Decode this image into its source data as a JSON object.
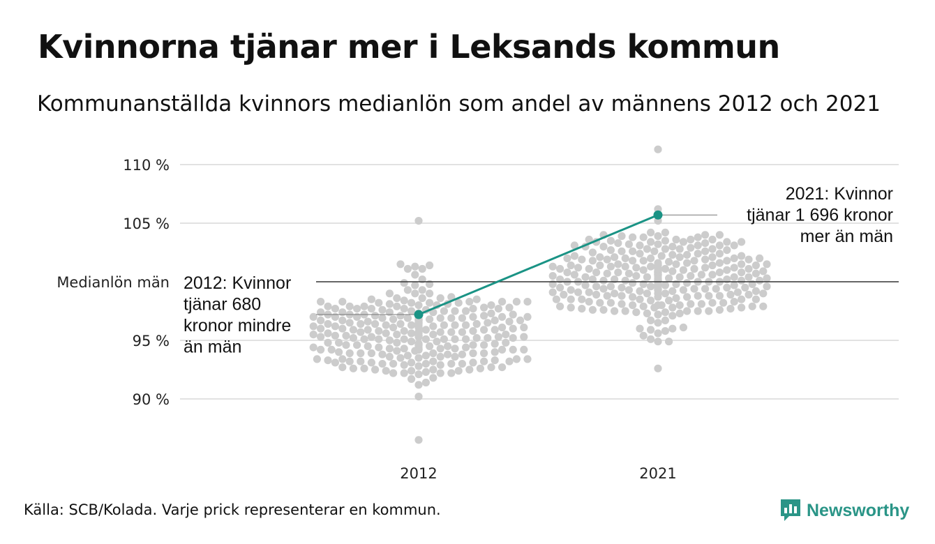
{
  "title": "Kvinnorna tjänar mer i Leksands kommun",
  "subtitle": "Kommunanställda kvinnors medianlön som andel av männens 2012 och 2021",
  "footer": "Källa: SCB/Kolada. Varje prick representerar en kommun.",
  "logo": {
    "text": "Newsworthy",
    "icon": "bar-chart-speech-icon"
  },
  "colors": {
    "accent": "#1a9385",
    "dots": "#cccccc",
    "grid": "#e2e2e2",
    "reference": "#333333"
  },
  "chart_data": {
    "type": "scatter",
    "subtype": "beeswarm",
    "categories": [
      "2012",
      "2021"
    ],
    "y_tick_labels": [
      "110 %",
      "105 %",
      "95 %",
      "90 %"
    ],
    "y_ticks": [
      110,
      105,
      95,
      90
    ],
    "ylim": [
      86,
      112
    ],
    "reference_line": {
      "label": "Medianlön män",
      "value": 100
    },
    "grid": true,
    "highlight": {
      "name": "Leksand",
      "values": [
        97.2,
        105.7
      ],
      "annotations": [
        {
          "category": "2012",
          "lines": [
            "2012: Kvinnor",
            "tjänar 680",
            "kronor mindre",
            "än män"
          ]
        },
        {
          "category": "2021",
          "lines": [
            "2021: Kvinnor",
            "tjänar 1 696 kronor",
            "mer än män"
          ]
        }
      ]
    },
    "distributions": [
      {
        "category": "2012",
        "count": 290,
        "min": 86.5,
        "max": 105.2,
        "median": 95.6
      },
      {
        "category": "2021",
        "count": 290,
        "min": 92.6,
        "max": 111.3,
        "median": 100.3
      }
    ]
  }
}
